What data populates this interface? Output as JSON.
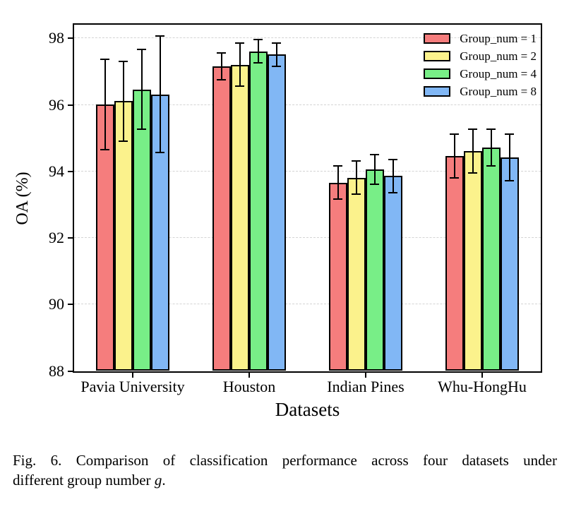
{
  "chart_data": {
    "type": "bar",
    "title": "",
    "xlabel": "Datasets",
    "ylabel": "OA (%)",
    "ylim": [
      88,
      98.4
    ],
    "yticks": [
      88,
      90,
      92,
      94,
      96,
      98
    ],
    "grid": "horizontal-dashed",
    "legend_position": "upper right",
    "bar_edge_color": "#000000",
    "error_bars": true,
    "categories": [
      "Pavia University",
      "Houston",
      "Indian Pines",
      "Whu-HongHu"
    ],
    "series": [
      {
        "name": "Group_num = 1",
        "color": "#F57D7D",
        "values": [
          96.0,
          97.15,
          93.65,
          94.45
        ],
        "errors": [
          1.35,
          0.4,
          0.5,
          0.65
        ]
      },
      {
        "name": "Group_num = 2",
        "color": "#FBF28C",
        "values": [
          96.1,
          97.2,
          93.8,
          94.6
        ],
        "errors": [
          1.2,
          0.65,
          0.5,
          0.65
        ]
      },
      {
        "name": "Group_num = 4",
        "color": "#78EE87",
        "values": [
          96.45,
          97.6,
          94.05,
          94.7
        ],
        "errors": [
          1.2,
          0.35,
          0.45,
          0.55
        ]
      },
      {
        "name": "Group_num = 8",
        "color": "#81B7F5",
        "values": [
          96.3,
          97.5,
          93.85,
          94.4
        ],
        "errors": [
          1.75,
          0.35,
          0.5,
          0.7
        ]
      }
    ]
  },
  "caption": {
    "line1": "Fig. 6.  Comparison of classification performance across four datasets under",
    "line2_before": "different group number ",
    "line2_italic": "g",
    "line2_after": "."
  }
}
